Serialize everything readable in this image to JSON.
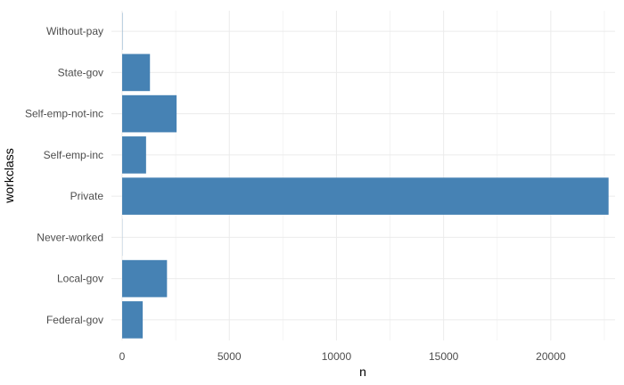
{
  "chart_data": {
    "type": "bar",
    "orientation": "horizontal",
    "categories": [
      "Federal-gov",
      "Local-gov",
      "Never-worked",
      "Private",
      "Self-emp-inc",
      "Self-emp-not-inc",
      "State-gov",
      "Without-pay"
    ],
    "values": [
      960,
      2093,
      7,
      22696,
      1116,
      2541,
      1298,
      14
    ],
    "xlabel": "n",
    "ylabel": "workclass",
    "xlim": [
      -500,
      23000
    ],
    "xticks": [
      0,
      5000,
      10000,
      15000,
      20000
    ],
    "xtick_labels": [
      "0",
      "5000",
      "10000",
      "15000",
      "20000"
    ],
    "bar_color": "#4682B4",
    "grid": true,
    "theme": "minimal"
  }
}
